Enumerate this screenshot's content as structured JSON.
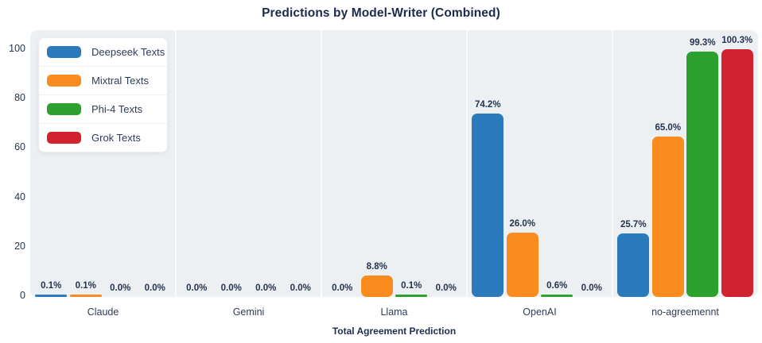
{
  "page": {
    "title": "Predictions by Model-Writer (Combined)"
  },
  "chart_data": {
    "type": "bar",
    "title": "Predictions by Model-Writer (Combined)",
    "xlabel": "Total Agreement Prediction",
    "ylabel": "",
    "ylim": [
      0,
      107
    ],
    "yticks": [
      0,
      20,
      40,
      60,
      80,
      100
    ],
    "grid": false,
    "legend_position": "upper-left",
    "value_label_suffix": "%",
    "categories": [
      "Claude",
      "Gemini",
      "Llama",
      "OpenAI",
      "no-agreemennt"
    ],
    "series": [
      {
        "name": "Deepseek Texts",
        "color": "#2b7abc",
        "values": [
          0.1,
          0.0,
          0.0,
          74.2,
          25.7
        ]
      },
      {
        "name": "Mixtral Texts",
        "color": "#fa8b1e",
        "values": [
          0.1,
          0.0,
          8.8,
          26.0,
          65.0
        ]
      },
      {
        "name": "Phi-4 Texts",
        "color": "#2da12d",
        "values": [
          0.0,
          0.0,
          0.1,
          0.6,
          99.3
        ]
      },
      {
        "name": "Grok Texts",
        "color": "#d0232f",
        "values": [
          0.0,
          0.0,
          0.0,
          0.0,
          100.3
        ]
      }
    ],
    "colors": {
      "plot_background": "#edf0f3",
      "panel_separator": "#fafbfc",
      "label_text": "#24334f",
      "title_text": "#1b2a4a"
    }
  }
}
